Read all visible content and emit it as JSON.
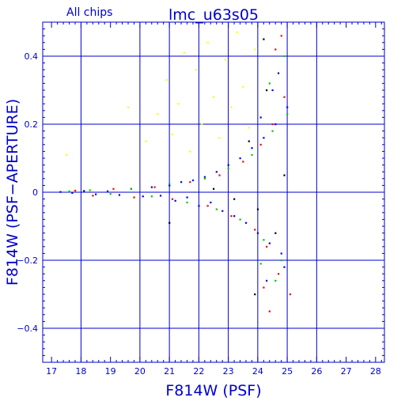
{
  "header": {
    "left_label": "All chips",
    "title": "lmc_u63s05"
  },
  "colors": {
    "axis": "#0000cc",
    "grid": "#0000cc",
    "background": "#ffffff"
  },
  "chart_data": {
    "type": "scatter",
    "title": "lmc_u63s05",
    "subtitle": "All chips",
    "xlabel": "F814W (PSF)",
    "ylabel": "F814W (PSF−APERTURE)",
    "xlim": [
      16.7,
      28.3
    ],
    "ylim": [
      -0.5,
      0.5
    ],
    "xticks": [
      "17",
      "18",
      "19",
      "20",
      "21",
      "22",
      "23",
      "24",
      "25",
      "26",
      "27",
      "28"
    ],
    "yticks": [
      "−0.4",
      "−0.2",
      "0",
      "0.2",
      "0.4"
    ],
    "ytick_values": [
      -0.4,
      -0.2,
      0,
      0.2,
      0.4
    ],
    "grid_x_values": [
      18,
      20,
      21,
      22,
      23,
      24,
      25,
      26
    ],
    "grid_y_values": [
      -0.4,
      -0.2,
      0,
      0.2,
      0.4
    ],
    "grid": true,
    "series": [
      {
        "color": "#0000ff",
        "values": [
          [
            17.3,
            0.001
          ],
          [
            17.7,
            -0.002
          ],
          [
            18.1,
            0.004
          ],
          [
            18.5,
            -0.006
          ],
          [
            18.9,
            0.003
          ],
          [
            19.3,
            -0.008
          ],
          [
            19.7,
            0.01
          ],
          [
            20.1,
            -0.012
          ],
          [
            20.4,
            0.015
          ],
          [
            20.7,
            -0.01
          ],
          [
            21.0,
            0.02
          ],
          [
            21.2,
            -0.025
          ],
          [
            21.4,
            0.03
          ],
          [
            21.6,
            -0.015
          ],
          [
            21.8,
            0.035
          ],
          [
            22.0,
            -0.04
          ],
          [
            22.2,
            0.045
          ],
          [
            22.4,
            -0.03
          ],
          [
            22.6,
            0.06
          ],
          [
            22.8,
            -0.055
          ],
          [
            23.0,
            0.08
          ],
          [
            23.2,
            -0.07
          ],
          [
            23.4,
            0.1
          ],
          [
            23.6,
            -0.09
          ],
          [
            23.8,
            0.13
          ],
          [
            24.0,
            -0.12
          ],
          [
            24.2,
            0.16
          ],
          [
            24.4,
            -0.15
          ],
          [
            24.6,
            0.2
          ],
          [
            24.8,
            -0.18
          ],
          [
            25.0,
            0.25
          ],
          [
            24.9,
            -0.22
          ],
          [
            24.5,
            0.3
          ],
          [
            24.3,
            -0.26
          ],
          [
            24.7,
            0.35
          ],
          [
            24.1,
            0.22
          ]
        ]
      },
      {
        "color": "#ff0000",
        "values": [
          [
            17.8,
            0.005
          ],
          [
            18.4,
            -0.01
          ],
          [
            19.1,
            0.01
          ],
          [
            19.8,
            -0.015
          ],
          [
            20.5,
            0.015
          ],
          [
            21.1,
            -0.02
          ],
          [
            21.7,
            0.03
          ],
          [
            22.3,
            -0.04
          ],
          [
            22.7,
            0.05
          ],
          [
            23.1,
            -0.07
          ],
          [
            23.5,
            0.09
          ],
          [
            23.9,
            -0.11
          ],
          [
            24.1,
            0.14
          ],
          [
            24.3,
            -0.16
          ],
          [
            24.5,
            0.2
          ],
          [
            24.7,
            -0.24
          ],
          [
            24.9,
            0.28
          ],
          [
            25.1,
            -0.3
          ],
          [
            24.6,
            0.42
          ],
          [
            24.4,
            -0.35
          ],
          [
            24.8,
            0.46
          ],
          [
            24.2,
            -0.28
          ]
        ]
      },
      {
        "color": "#00cc00",
        "values": [
          [
            17.6,
            0.003
          ],
          [
            18.3,
            0.006
          ],
          [
            19.0,
            -0.005
          ],
          [
            19.7,
            0.01
          ],
          [
            20.4,
            -0.012
          ],
          [
            21.0,
            0.025
          ],
          [
            21.6,
            -0.03
          ],
          [
            22.2,
            0.04
          ],
          [
            22.6,
            -0.05
          ],
          [
            23.0,
            0.07
          ],
          [
            23.4,
            -0.08
          ],
          [
            23.8,
            0.11
          ],
          [
            24.2,
            -0.14
          ],
          [
            24.5,
            0.18
          ],
          [
            24.8,
            -0.2
          ],
          [
            25.0,
            0.23
          ],
          [
            24.6,
            -0.26
          ],
          [
            24.4,
            0.32
          ],
          [
            24.9,
            0.4
          ],
          [
            24.1,
            -0.21
          ]
        ]
      },
      {
        "color": "#ffff00",
        "values": [
          [
            20.2,
            0.15
          ],
          [
            20.6,
            0.23
          ],
          [
            20.9,
            0.33
          ],
          [
            21.1,
            0.17
          ],
          [
            21.3,
            0.26
          ],
          [
            21.5,
            0.41
          ],
          [
            21.7,
            0.12
          ],
          [
            21.9,
            0.36
          ],
          [
            22.1,
            0.2
          ],
          [
            22.3,
            0.44
          ],
          [
            22.5,
            0.28
          ],
          [
            22.7,
            0.16
          ],
          [
            22.9,
            0.39
          ],
          [
            23.1,
            0.25
          ],
          [
            23.3,
            0.47
          ],
          [
            23.5,
            0.31
          ],
          [
            23.7,
            0.19
          ],
          [
            23.9,
            0.42
          ],
          [
            17.5,
            0.11
          ],
          [
            19.6,
            0.25
          ]
        ]
      },
      {
        "color": "#000000",
        "values": [
          [
            21.0,
            -0.09
          ],
          [
            22.5,
            0.01
          ],
          [
            23.2,
            -0.02
          ],
          [
            23.7,
            0.15
          ],
          [
            24.0,
            -0.05
          ],
          [
            24.3,
            0.3
          ],
          [
            24.6,
            -0.12
          ],
          [
            24.9,
            0.05
          ],
          [
            24.2,
            0.45
          ],
          [
            23.9,
            -0.3
          ]
        ]
      }
    ]
  }
}
